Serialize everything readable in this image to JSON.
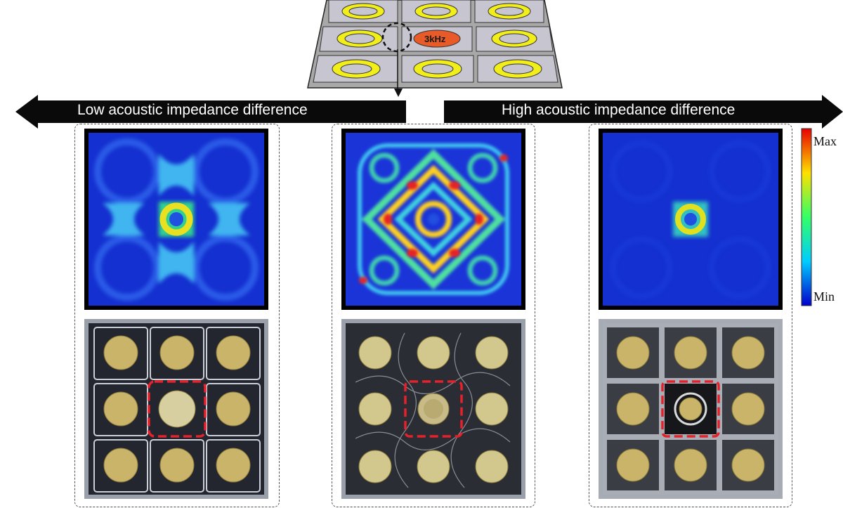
{
  "plate": {
    "frequency_label": "3kHz",
    "grid": "3x3",
    "excited_cell": "center",
    "colors": {
      "cell": "#c7c5cf",
      "ring": "#f2ee1a",
      "excited": "#e85a28"
    }
  },
  "arrows": {
    "left_label": "Low acoustic impedance difference",
    "right_label": "High acoustic impedance difference"
  },
  "colorbar": {
    "max_label": "Max",
    "min_label": "Min",
    "colors": [
      "#e60000",
      "#ffe000",
      "#33ff66",
      "#00ccff",
      "#0000cc"
    ]
  },
  "panels": [
    {
      "id": "low",
      "simulation": "Field concentrated at centre cell with weaker lobes along the axes"
    },
    {
      "id": "middle",
      "simulation": "Strong interference pattern spread across whole plate"
    },
    {
      "id": "high",
      "simulation": "Field confined to the excited centre cell"
    }
  ]
}
